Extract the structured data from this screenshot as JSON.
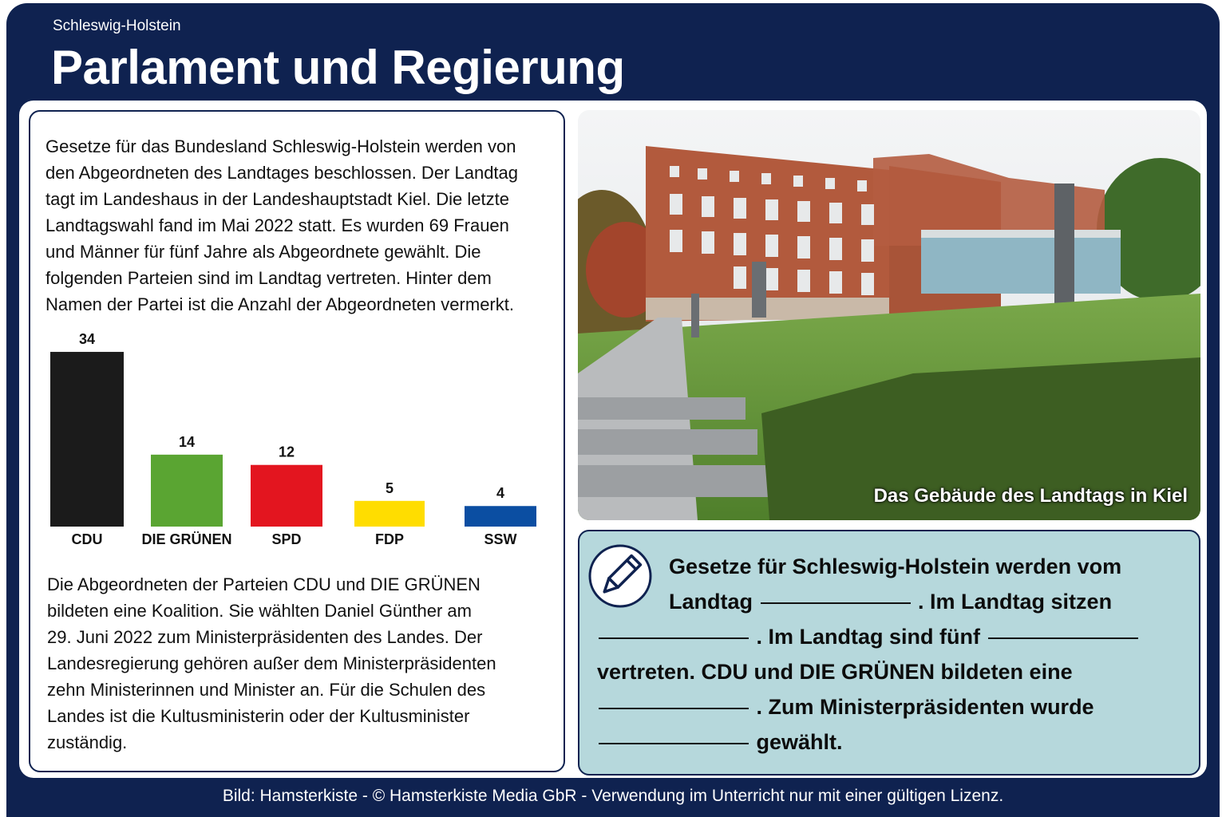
{
  "header": {
    "region": "Schleswig-Holstein",
    "title": "Parlament und Regierung"
  },
  "intro": [
    "Gesetze für das Bundesland Schleswig-Holstein werden von",
    "den Abgeordneten des Landtages beschlossen. Der Landtag",
    "tagt im Landeshaus in der Landeshauptstadt Kiel. Die letzte",
    "Landtagswahl fand im Mai 2022 statt. Es wurden 69 Frauen",
    "und Männer für fünf Jahre als Abgeordnete gewählt. Die",
    "folgenden Parteien sind im Landtag vertreten. Hinter dem",
    "Namen der Partei ist die Anzahl der Abgeordneten vermerkt."
  ],
  "chart_data": {
    "type": "bar",
    "categories": [
      "CDU",
      "DIE GRÜNEN",
      "SPD",
      "FDP",
      "SSW"
    ],
    "values": [
      34,
      14,
      12,
      5,
      4
    ],
    "colors": [
      "#1b1b1b",
      "#5aa532",
      "#e3151f",
      "#ffdd00",
      "#0b4ea2"
    ]
  },
  "outro": [
    "Die Abgeordneten der Parteien CDU und DIE GRÜNEN",
    "bildeten eine Koalition. Sie wählten Daniel Günther am",
    "29. Juni 2022 zum Ministerpräsidenten des Landes. Der",
    "Landesregierung gehören außer dem Ministerpräsidenten",
    "zehn Ministerinnen und Minister an. Für die Schulen des",
    "Landes ist die Kultusministerin oder der Kultusminister",
    "zuständig."
  ],
  "photo": {
    "caption": "Das Gebäude des Landtags in Kiel"
  },
  "exercise": [
    "Gesetze für Schleswig-Holstein werden vom Landtag",
    ". Im Landtag sitzen",
    ". Im Landtag sind fünf",
    "vertreten. CDU und DIE GRÜNEN bildeten eine",
    ". Zum Ministerpräsidenten wurde",
    "gewählt."
  ],
  "footer": "Bild: Hamsterkiste - © Hamsterkiste Media GbR - Verwendung im Unterricht nur mit einer gültigen Lizenz."
}
